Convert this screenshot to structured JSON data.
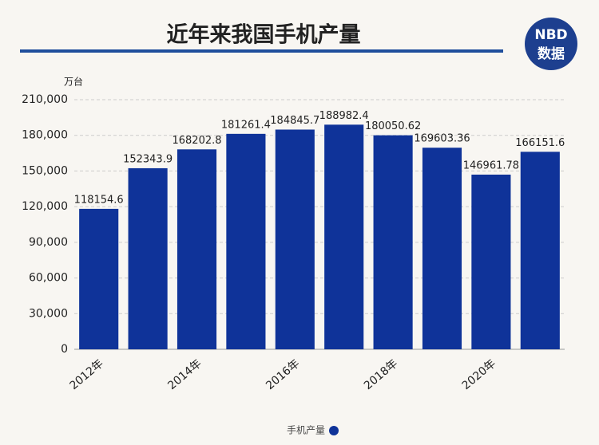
{
  "chart_data": {
    "type": "bar",
    "title": "近年来我国手机产量",
    "y_axis_label": "万台",
    "logo": {
      "top": "NBD",
      "bottom": "数据"
    },
    "categories": [
      "2012年",
      null,
      "2014年",
      null,
      "2016年",
      null,
      "2018年",
      null,
      "2020年",
      null
    ],
    "series": [
      {
        "name": "手机产量",
        "color": "#0f3399",
        "values": [
          118154.6,
          152343.9,
          168202.8,
          181261.4,
          184845.7,
          188982.4,
          180050.62,
          169603.36,
          146961.78,
          166151.6
        ]
      }
    ],
    "ylim": [
      0,
      210000
    ],
    "yticks": [
      0,
      {
        "value": 30000,
        "label": "30,000"
      },
      {
        "value": 60000,
        "label": "60,000"
      },
      {
        "value": 90000,
        "label": "90,000"
      },
      {
        "value": 120000,
        "label": "120,000"
      },
      {
        "value": 150000,
        "label": "150,000"
      },
      {
        "value": 180000,
        "label": "180,000"
      },
      {
        "value": 210000,
        "label": "210,000"
      }
    ],
    "grid": true,
    "legend": "bottom"
  }
}
